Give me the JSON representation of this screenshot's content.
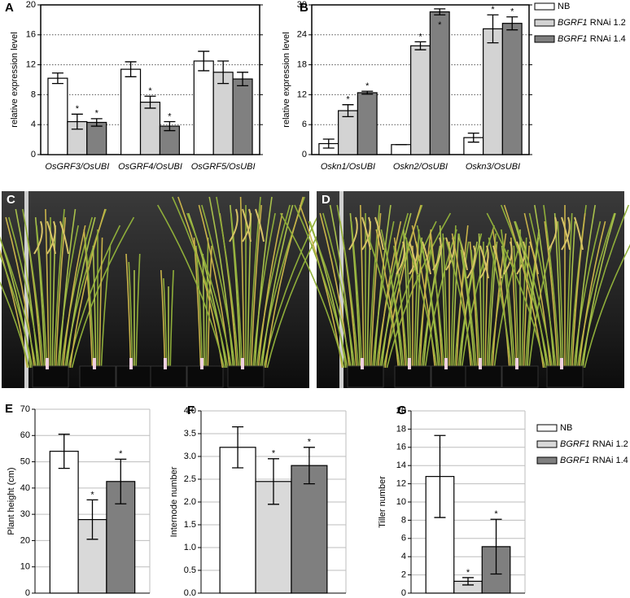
{
  "chart_data": [
    {
      "type": "bar",
      "panel_label": "A",
      "y_label": "relative expression level",
      "categories": [
        "OsGRF3/OsUBI",
        "OsGRF4/OsUBI",
        "OsGRF5/OsUBI"
      ],
      "series": [
        {
          "name": "NB",
          "color": "#ffffff",
          "values": [
            10.2,
            11.4,
            12.5
          ],
          "errors": [
            0.7,
            1.0,
            1.3
          ],
          "significance": [
            null,
            null,
            null
          ]
        },
        {
          "name": "BGRF1 RNAi 1.2",
          "color": "#d3d3d3",
          "values": [
            4.4,
            7.0,
            11.0
          ],
          "errors": [
            1.0,
            0.8,
            1.5
          ],
          "significance": [
            "*",
            "*",
            null
          ]
        },
        {
          "name": "BGRF1 RNAi 1.4",
          "color": "#808080",
          "values": [
            4.3,
            3.8,
            10.1
          ],
          "errors": [
            0.5,
            0.6,
            0.9
          ],
          "significance": [
            "*",
            "*",
            null
          ]
        }
      ],
      "ylim": [
        0,
        20
      ],
      "yticks": [
        0,
        4,
        8,
        12,
        16,
        20
      ],
      "grid": "dotted"
    },
    {
      "type": "bar",
      "panel_label": "B",
      "y_label": "relative expression level",
      "categories": [
        "Oskn1/OsUBI",
        "Oskn2/OsUBI",
        "Oskn3/OsUBI"
      ],
      "series": [
        {
          "name": "NB",
          "color": "#ffffff",
          "values": [
            2.2,
            2.0,
            3.4
          ],
          "errors": [
            0.9,
            0,
            0.9
          ],
          "significance": [
            null,
            null,
            null
          ]
        },
        {
          "name": "BGRF1 RNAi 1.2",
          "color": "#d3d3d3",
          "values": [
            8.8,
            21.8,
            25.2
          ],
          "errors": [
            1.2,
            0.8,
            2.8
          ],
          "significance": [
            "*",
            "*",
            "*"
          ]
        },
        {
          "name": "BGRF1 RNAi 1.4",
          "color": "#808080",
          "values": [
            12.4,
            28.6,
            26.3
          ],
          "errors": [
            0.3,
            0.6,
            1.3
          ],
          "significance": [
            "*",
            "*",
            "*"
          ]
        }
      ],
      "ylim": [
        0,
        30
      ],
      "yticks": [
        0,
        6,
        12,
        18,
        24,
        30
      ],
      "grid": "dotted",
      "legend": "right"
    },
    {
      "type": "bar",
      "panel_label": "E",
      "y_label": "Plant height (cm)",
      "categories": [
        null
      ],
      "series": [
        {
          "name": "NB",
          "color": "#ffffff",
          "values": [
            54
          ],
          "errors": [
            6.5
          ],
          "significance": [
            null
          ]
        },
        {
          "name": "BGRF1 RNAi 1.2",
          "color": "#d9d9d9",
          "values": [
            28
          ],
          "errors": [
            7.5
          ],
          "significance": [
            "*"
          ]
        },
        {
          "name": "BGRF1 RNAi 1.4",
          "color": "#7f7f7f",
          "values": [
            42.5
          ],
          "errors": [
            8.5
          ],
          "significance": [
            "*"
          ]
        }
      ],
      "ylim": [
        0,
        70
      ],
      "yticks": [
        0,
        10,
        20,
        30,
        40,
        50,
        60,
        70
      ],
      "grid": "solid"
    },
    {
      "type": "bar",
      "panel_label": "F",
      "y_label": "Internode number",
      "categories": [
        null
      ],
      "series": [
        {
          "name": "NB",
          "color": "#ffffff",
          "values": [
            3.2
          ],
          "errors": [
            0.45
          ],
          "significance": [
            null
          ]
        },
        {
          "name": "BGRF1 RNAi 1.2",
          "color": "#d9d9d9",
          "values": [
            2.45
          ],
          "errors": [
            0.5
          ],
          "significance": [
            "*"
          ]
        },
        {
          "name": "BGRF1 RNAi 1.4",
          "color": "#7f7f7f",
          "values": [
            2.8
          ],
          "errors": [
            0.4
          ],
          "significance": [
            "*"
          ]
        }
      ],
      "ylim": [
        0,
        4
      ],
      "yticks": [
        {
          "value": 0,
          "label": "0.0"
        },
        0.5,
        {
          "value": 1,
          "label": "1.0"
        },
        1.5,
        {
          "value": 2,
          "label": "2.0"
        },
        2.5,
        {
          "value": 3,
          "label": "3.0"
        },
        3.5,
        {
          "value": 4,
          "label": "4.0"
        }
      ],
      "grid": "solid"
    },
    {
      "type": "bar",
      "panel_label": "G",
      "y_label": "Tiller number",
      "categories": [
        null
      ],
      "series": [
        {
          "name": "NB",
          "color": "#ffffff",
          "values": [
            12.8
          ],
          "errors": [
            4.5
          ],
          "significance": [
            null
          ]
        },
        {
          "name": "BGRF1 RNAi 1.2",
          "color": "#d9d9d9",
          "values": [
            1.3
          ],
          "errors": [
            0.4
          ],
          "significance": [
            "*"
          ]
        },
        {
          "name": "BGRF1 RNAi 1.4",
          "color": "#7f7f7f",
          "values": [
            5.1
          ],
          "errors": [
            3.0
          ],
          "significance": [
            "*"
          ]
        }
      ],
      "ylim": [
        0,
        20
      ],
      "yticks": [
        0,
        2,
        4,
        6,
        8,
        10,
        12,
        14,
        16,
        18,
        20
      ],
      "grid": "solid",
      "legend": "right"
    }
  ],
  "photos": [
    {
      "panel_label": "C"
    },
    {
      "panel_label": "D"
    }
  ]
}
